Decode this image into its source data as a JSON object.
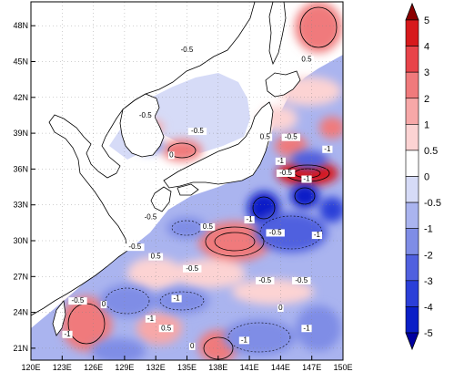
{
  "map": {
    "lon_labels": [
      "120E",
      "123E",
      "126E",
      "129E",
      "132E",
      "135E",
      "138E",
      "141E",
      "144E",
      "147E",
      "150E"
    ],
    "lat_labels": [
      "21N",
      "24N",
      "27N",
      "30N",
      "33N",
      "36N",
      "39N",
      "42N",
      "45N",
      "48N"
    ],
    "lon_range": [
      120,
      150
    ],
    "lat_range": [
      20,
      50
    ],
    "land_color": "#ffffff",
    "coast_color": "#000000"
  },
  "colorbar": {
    "levels": [
      "5",
      "4",
      "3",
      "2",
      "1",
      "0.5",
      "0",
      "-0.5",
      "-1",
      "-2",
      "-3",
      "-4",
      "-5"
    ],
    "colors": [
      "#8b0000",
      "#d7191c",
      "#e8444a",
      "#f07a7c",
      "#f7a8a8",
      "#fcd3d3",
      "#ffffff",
      "#d6dbf7",
      "#aab4ef",
      "#7f8de6",
      "#5060df",
      "#2b3fd8",
      "#0a1fc7",
      "#0000a0"
    ]
  },
  "contour_labels": [
    {
      "text": "0.5",
      "lon": 146.5,
      "lat": 45.0
    },
    {
      "text": "-0.5",
      "lon": 135.0,
      "lat": 45.8
    },
    {
      "text": "-0.5",
      "lon": 131.0,
      "lat": 40.3
    },
    {
      "text": "-0.5",
      "lon": 136.0,
      "lat": 39.0
    },
    {
      "text": "0",
      "lon": 133.5,
      "lat": 37.0
    },
    {
      "text": "0.5",
      "lon": 142.5,
      "lat": 38.5
    },
    {
      "text": "-0.5",
      "lon": 145.0,
      "lat": 38.5
    },
    {
      "text": "-1",
      "lon": 148.5,
      "lat": 37.5
    },
    {
      "text": "-1",
      "lon": 144.0,
      "lat": 36.5
    },
    {
      "text": "-0.5",
      "lon": 144.5,
      "lat": 35.5
    },
    {
      "text": "-1",
      "lon": 146.5,
      "lat": 35.0
    },
    {
      "text": "-0.5",
      "lon": 131.5,
      "lat": 31.8
    },
    {
      "text": "-1",
      "lon": 141.0,
      "lat": 31.6
    },
    {
      "text": "0.5",
      "lon": 137.0,
      "lat": 31.0
    },
    {
      "text": "-0.5",
      "lon": 143.5,
      "lat": 30.5
    },
    {
      "text": "-1",
      "lon": 147.5,
      "lat": 30.3
    },
    {
      "text": "-0.5",
      "lon": 130.0,
      "lat": 29.3
    },
    {
      "text": "0.5",
      "lon": 132.0,
      "lat": 28.5
    },
    {
      "text": "-0.5",
      "lon": 135.5,
      "lat": 27.5
    },
    {
      "text": "-0.5",
      "lon": 142.5,
      "lat": 26.5
    },
    {
      "text": "-0.5",
      "lon": 146.0,
      "lat": 26.5
    },
    {
      "text": "-0.5",
      "lon": 124.5,
      "lat": 24.8
    },
    {
      "text": "-1",
      "lon": 134.0,
      "lat": 25.0
    },
    {
      "text": "0",
      "lon": 127.0,
      "lat": 24.5
    },
    {
      "text": "-1",
      "lon": 131.5,
      "lat": 23.3
    },
    {
      "text": "-1",
      "lon": 123.5,
      "lat": 22.0
    },
    {
      "text": "0.5",
      "lon": 133.0,
      "lat": 22.5
    },
    {
      "text": "-1",
      "lon": 140.5,
      "lat": 21.5
    },
    {
      "text": "0",
      "lon": 135.5,
      "lat": 21.0
    },
    {
      "text": "0",
      "lon": 144.0,
      "lat": 24.2
    },
    {
      "text": "-1",
      "lon": 146.5,
      "lat": 22.5
    }
  ]
}
